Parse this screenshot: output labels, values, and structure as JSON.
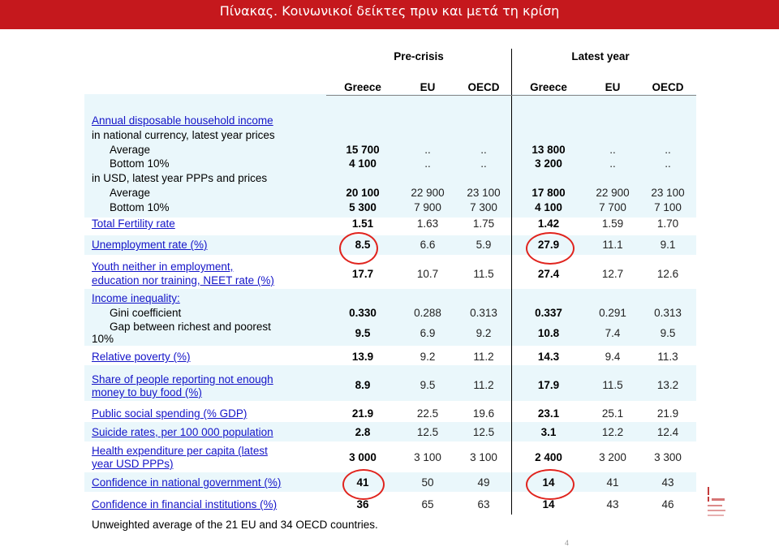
{
  "page": {
    "title": "Πίνακας. Κοινωνικοί δείκτες πριν και μετά τη κρίση",
    "page_number": "4"
  },
  "table": {
    "group_headers": [
      "Pre-crisis",
      "Latest year"
    ],
    "columns": [
      "Greece",
      "EU",
      "OECD",
      "Greece",
      "EU",
      "OECD"
    ],
    "rows": {
      "income_title": "Annual disposable household income",
      "natcur": "in national currency, latest year prices",
      "avg1": {
        "label": "Average",
        "v": [
          "15 700",
          "..",
          "..",
          "13 800",
          "..",
          ".."
        ]
      },
      "bot1": {
        "label": "Bottom 10%",
        "v": [
          "4 100",
          "..",
          "..",
          "3 200",
          "..",
          ".."
        ]
      },
      "usd": "in USD, latest year PPPs and prices",
      "avg2": {
        "label": "Average",
        "v": [
          "20 100",
          "22 900",
          "23 100",
          "17 800",
          "22 900",
          "23 100"
        ]
      },
      "bot2": {
        "label": "Bottom 10%",
        "v": [
          "5 300",
          "7 900",
          "7 300",
          "4 100",
          "7 700",
          "7 100"
        ]
      },
      "tfr": {
        "label": "Total Fertility rate",
        "v": [
          "1.51",
          "1.63",
          "1.75",
          "1.42",
          "1.59",
          "1.70"
        ]
      },
      "unemp": {
        "label": "Unemployment rate (%)",
        "v": [
          "8.5",
          "6.6",
          "5.9",
          "27.9",
          "11.1",
          "9.1"
        ]
      },
      "neet": {
        "label1": "Youth neither in employment,",
        "label2": "education nor training, NEET rate (%)",
        "v": [
          "17.7",
          "10.7",
          "11.5",
          "27.4",
          "12.7",
          "12.6"
        ]
      },
      "ineq_title": "Income inequality:",
      "gini": {
        "label": "Gini coefficient",
        "v": [
          "0.330",
          "0.288",
          "0.313",
          "0.337",
          "0.291",
          "0.313"
        ]
      },
      "gap": {
        "label1": "Gap between richest and poorest",
        "label2": "10%",
        "v": [
          "9.5",
          "6.9",
          "9.2",
          "10.8",
          "7.4",
          "9.5"
        ]
      },
      "pov": {
        "label": "Relative poverty (%)",
        "v": [
          "13.9",
          "9.2",
          "11.2",
          "14.3",
          "9.4",
          "11.3"
        ]
      },
      "food": {
        "label1": "Share of people reporting not enough",
        "label2": "money to buy food (%)",
        "v": [
          "8.9",
          "9.5",
          "11.2",
          "17.9",
          "11.5",
          "13.2"
        ]
      },
      "pss": {
        "label": "Public social spending (% GDP)",
        "v": [
          "21.9",
          "22.5",
          "19.6",
          "23.1",
          "25.1",
          "21.9"
        ]
      },
      "sui": {
        "label": "Suicide rates, per 100 000 population",
        "v": [
          "2.8",
          "12.5",
          "12.5",
          "3.1",
          "12.2",
          "12.4"
        ]
      },
      "health": {
        "label1": "Health expenditure per capita (latest",
        "label2": "year USD PPPs)",
        "v": [
          "3 000",
          "3 100",
          "3 100",
          "2 400",
          "3 200",
          "3 300"
        ]
      },
      "govt": {
        "label": "Confidence in national government (%)",
        "v": [
          "41",
          "50",
          "49",
          "14",
          "41",
          "43"
        ]
      },
      "fin": {
        "label": "Confidence in financial institutions (%)",
        "v": [
          "36",
          "65",
          "63",
          "14",
          "43",
          "46"
        ]
      }
    },
    "note": "Unweighted average of the 21 EU and 34 OECD countries."
  },
  "colors": {
    "title_bar": "#c5181d",
    "link": "#1414c8",
    "highlight_circle": "#e0241e",
    "band": "#eaf7fb"
  }
}
